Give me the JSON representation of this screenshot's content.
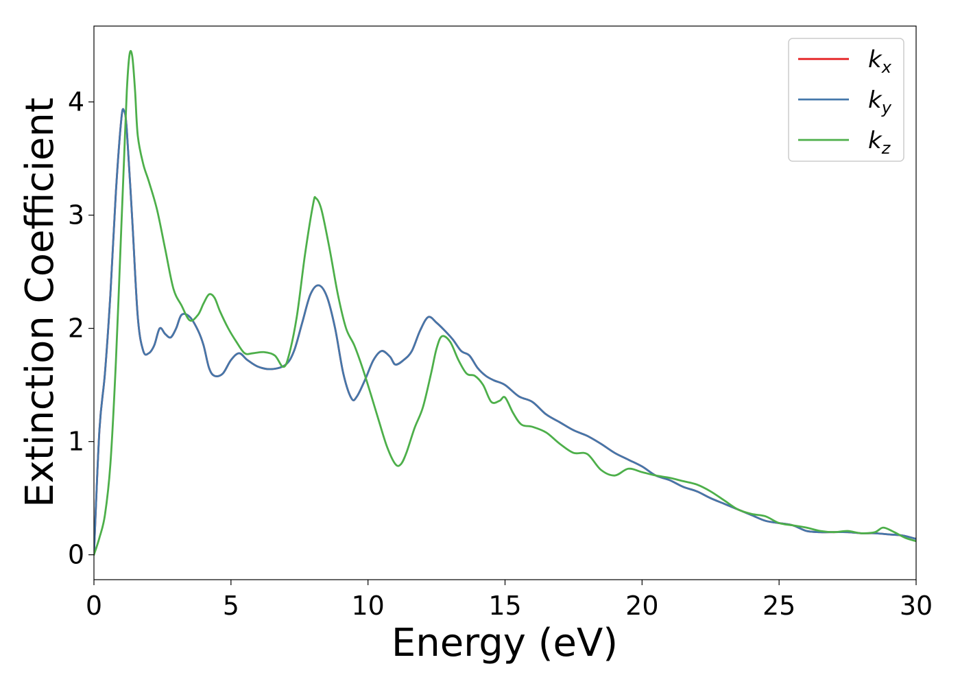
{
  "chart_data": {
    "type": "line",
    "title": "",
    "xlabel": "Energy (eV)",
    "ylabel": "Extinction Coefficient",
    "xlim": [
      0,
      30
    ],
    "ylim": [
      -0.22,
      4.67
    ],
    "xticks": [
      0,
      5,
      10,
      15,
      20,
      25,
      30
    ],
    "yticks": [
      0,
      1,
      2,
      3,
      4
    ],
    "grid": false,
    "legend_position": "top-right",
    "series": [
      {
        "name": "k",
        "name_subscript": "x",
        "color": "#e41a1c",
        "x": [
          0.0,
          0.2,
          0.4,
          0.6,
          0.8,
          1.0,
          1.1,
          1.2,
          1.4,
          1.6,
          1.8,
          2.0,
          2.2,
          2.4,
          2.6,
          2.8,
          3.0,
          3.2,
          3.5,
          3.8,
          4.0,
          4.2,
          4.4,
          4.7,
          5.0,
          5.3,
          5.6,
          6.0,
          6.5,
          7.0,
          7.3,
          7.6,
          7.9,
          8.2,
          8.5,
          8.8,
          9.1,
          9.4,
          9.6,
          9.9,
          10.2,
          10.5,
          10.8,
          11.0,
          11.3,
          11.6,
          11.9,
          12.2,
          12.5,
          12.8,
          13.1,
          13.4,
          13.7,
          14.0,
          14.3,
          14.6,
          15.0,
          15.5,
          16.0,
          16.5,
          17.0,
          17.5,
          18.0,
          18.5,
          19.0,
          19.5,
          20.0,
          20.5,
          21.0,
          21.5,
          22.0,
          22.5,
          23.0,
          23.5,
          24.0,
          24.5,
          25.0,
          25.5,
          26.0,
          26.5,
          27.0,
          27.5,
          28.0,
          28.5,
          29.0,
          29.5,
          30.0
        ],
        "values": [
          0.0,
          1.1,
          1.6,
          2.3,
          3.2,
          3.85,
          3.92,
          3.75,
          2.95,
          2.1,
          1.8,
          1.78,
          1.85,
          2.0,
          1.95,
          1.92,
          2.0,
          2.12,
          2.1,
          1.98,
          1.85,
          1.65,
          1.58,
          1.6,
          1.72,
          1.78,
          1.72,
          1.66,
          1.64,
          1.68,
          1.8,
          2.05,
          2.3,
          2.38,
          2.28,
          2.0,
          1.6,
          1.38,
          1.4,
          1.55,
          1.72,
          1.8,
          1.75,
          1.68,
          1.72,
          1.8,
          1.98,
          2.1,
          2.05,
          1.98,
          1.9,
          1.8,
          1.76,
          1.65,
          1.58,
          1.54,
          1.5,
          1.4,
          1.35,
          1.24,
          1.17,
          1.1,
          1.05,
          0.98,
          0.9,
          0.84,
          0.78,
          0.7,
          0.66,
          0.6,
          0.56,
          0.5,
          0.45,
          0.4,
          0.35,
          0.3,
          0.28,
          0.26,
          0.21,
          0.2,
          0.2,
          0.2,
          0.19,
          0.19,
          0.18,
          0.17,
          0.14
        ]
      },
      {
        "name": "k",
        "name_subscript": "y",
        "color": "#4477aa",
        "x": [
          0.0,
          0.2,
          0.4,
          0.6,
          0.8,
          1.0,
          1.1,
          1.2,
          1.4,
          1.6,
          1.8,
          2.0,
          2.2,
          2.4,
          2.6,
          2.8,
          3.0,
          3.2,
          3.5,
          3.8,
          4.0,
          4.2,
          4.4,
          4.7,
          5.0,
          5.3,
          5.6,
          6.0,
          6.5,
          7.0,
          7.3,
          7.6,
          7.9,
          8.2,
          8.5,
          8.8,
          9.1,
          9.4,
          9.6,
          9.9,
          10.2,
          10.5,
          10.8,
          11.0,
          11.3,
          11.6,
          11.9,
          12.2,
          12.5,
          12.8,
          13.1,
          13.4,
          13.7,
          14.0,
          14.3,
          14.6,
          15.0,
          15.5,
          16.0,
          16.5,
          17.0,
          17.5,
          18.0,
          18.5,
          19.0,
          19.5,
          20.0,
          20.5,
          21.0,
          21.5,
          22.0,
          22.5,
          23.0,
          23.5,
          24.0,
          24.5,
          25.0,
          25.5,
          26.0,
          26.5,
          27.0,
          27.5,
          28.0,
          28.5,
          29.0,
          29.5,
          30.0
        ],
        "values": [
          0.0,
          1.1,
          1.6,
          2.3,
          3.2,
          3.85,
          3.92,
          3.75,
          2.95,
          2.1,
          1.8,
          1.78,
          1.85,
          2.0,
          1.95,
          1.92,
          2.0,
          2.12,
          2.1,
          1.98,
          1.85,
          1.65,
          1.58,
          1.6,
          1.72,
          1.78,
          1.72,
          1.66,
          1.64,
          1.68,
          1.8,
          2.05,
          2.3,
          2.38,
          2.28,
          2.0,
          1.6,
          1.38,
          1.4,
          1.55,
          1.72,
          1.8,
          1.75,
          1.68,
          1.72,
          1.8,
          1.98,
          2.1,
          2.05,
          1.98,
          1.9,
          1.8,
          1.76,
          1.65,
          1.58,
          1.54,
          1.5,
          1.4,
          1.35,
          1.24,
          1.17,
          1.1,
          1.05,
          0.98,
          0.9,
          0.84,
          0.78,
          0.7,
          0.66,
          0.6,
          0.56,
          0.5,
          0.45,
          0.4,
          0.35,
          0.3,
          0.28,
          0.26,
          0.21,
          0.2,
          0.2,
          0.2,
          0.19,
          0.19,
          0.18,
          0.17,
          0.14
        ]
      },
      {
        "name": "k",
        "name_subscript": "z",
        "color": "#4daf4a",
        "x": [
          0.0,
          0.2,
          0.4,
          0.6,
          0.8,
          1.0,
          1.1,
          1.2,
          1.3,
          1.4,
          1.5,
          1.6,
          1.8,
          2.0,
          2.3,
          2.6,
          2.9,
          3.2,
          3.5,
          3.8,
          4.0,
          4.2,
          4.4,
          4.6,
          4.9,
          5.2,
          5.5,
          5.8,
          6.2,
          6.6,
          6.9,
          7.1,
          7.4,
          7.7,
          8.0,
          8.1,
          8.3,
          8.6,
          8.9,
          9.2,
          9.5,
          9.8,
          10.1,
          10.4,
          10.7,
          11.0,
          11.2,
          11.4,
          11.7,
          12.0,
          12.3,
          12.5,
          12.7,
          13.0,
          13.3,
          13.6,
          13.9,
          14.2,
          14.5,
          14.8,
          15.0,
          15.3,
          15.6,
          16.0,
          16.5,
          17.0,
          17.5,
          18.0,
          18.5,
          19.0,
          19.5,
          20.0,
          20.5,
          21.0,
          21.5,
          22.0,
          22.5,
          23.0,
          23.5,
          24.0,
          24.5,
          25.0,
          25.5,
          26.0,
          26.5,
          27.0,
          27.5,
          28.0,
          28.5,
          28.8,
          29.2,
          29.6,
          30.0
        ],
        "values": [
          0.0,
          0.15,
          0.35,
          0.8,
          1.7,
          2.9,
          3.5,
          4.1,
          4.42,
          4.4,
          4.1,
          3.7,
          3.45,
          3.3,
          3.05,
          2.7,
          2.35,
          2.2,
          2.07,
          2.12,
          2.22,
          2.3,
          2.27,
          2.15,
          2.0,
          1.88,
          1.78,
          1.78,
          1.79,
          1.76,
          1.66,
          1.75,
          2.1,
          2.65,
          3.1,
          3.15,
          3.05,
          2.7,
          2.3,
          2.0,
          1.85,
          1.65,
          1.42,
          1.18,
          0.95,
          0.8,
          0.8,
          0.9,
          1.12,
          1.3,
          1.6,
          1.82,
          1.93,
          1.88,
          1.72,
          1.6,
          1.58,
          1.5,
          1.35,
          1.36,
          1.39,
          1.25,
          1.15,
          1.13,
          1.08,
          0.98,
          0.9,
          0.89,
          0.75,
          0.7,
          0.76,
          0.73,
          0.7,
          0.68,
          0.65,
          0.62,
          0.56,
          0.48,
          0.4,
          0.36,
          0.34,
          0.28,
          0.26,
          0.24,
          0.21,
          0.2,
          0.21,
          0.19,
          0.2,
          0.24,
          0.2,
          0.15,
          0.12
        ]
      }
    ]
  }
}
